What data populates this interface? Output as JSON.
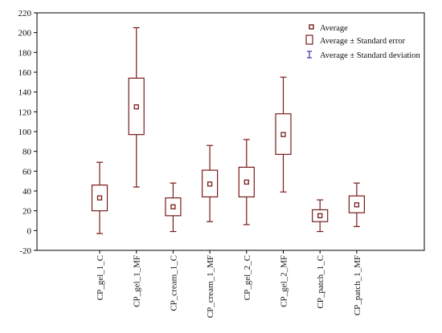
{
  "chart_data": {
    "type": "box",
    "categories": [
      "CP_gel_1_C",
      "CP_gel_1_MF",
      "CP_cream_1_C",
      "CP_cream_1_MF",
      "CP_gel_2_C",
      "CP_gel_2_MF",
      "CP_patch_1_C",
      "CP_patch_1_MF"
    ],
    "boxes": [
      {
        "average": 33,
        "se_low": 20,
        "se_high": 46,
        "sd_low": -3,
        "sd_high": 69
      },
      {
        "average": 125,
        "se_low": 97,
        "se_high": 154,
        "sd_low": 44,
        "sd_high": 205
      },
      {
        "average": 24,
        "se_low": 15,
        "se_high": 33,
        "sd_low": -1,
        "sd_high": 48
      },
      {
        "average": 47,
        "se_low": 34,
        "se_high": 61,
        "sd_low": 9,
        "sd_high": 86
      },
      {
        "average": 49,
        "se_low": 34,
        "se_high": 64,
        "sd_low": 6,
        "sd_high": 92
      },
      {
        "average": 97,
        "se_low": 77,
        "se_high": 118,
        "sd_low": 39,
        "sd_high": 155
      },
      {
        "average": 15,
        "se_low": 9,
        "se_high": 21,
        "sd_low": -1,
        "sd_high": 31
      },
      {
        "average": 26,
        "se_low": 18,
        "se_high": 35,
        "sd_low": 4,
        "sd_high": 48
      }
    ],
    "y_ticks": [
      "-20",
      "0",
      "20",
      "40",
      "60",
      "80",
      "100",
      "120",
      "140",
      "160",
      "180",
      "200",
      "220"
    ],
    "ylim": [
      -20,
      220
    ],
    "legend": {
      "placement": "top-right",
      "entries": [
        "Average",
        "Average ± Standard error",
        "Average ± Standard deviation"
      ]
    },
    "colors": {
      "box": "#7a1a1a",
      "sd_marker": "#3a2fa0",
      "axis": "#000000"
    },
    "grid": false
  }
}
